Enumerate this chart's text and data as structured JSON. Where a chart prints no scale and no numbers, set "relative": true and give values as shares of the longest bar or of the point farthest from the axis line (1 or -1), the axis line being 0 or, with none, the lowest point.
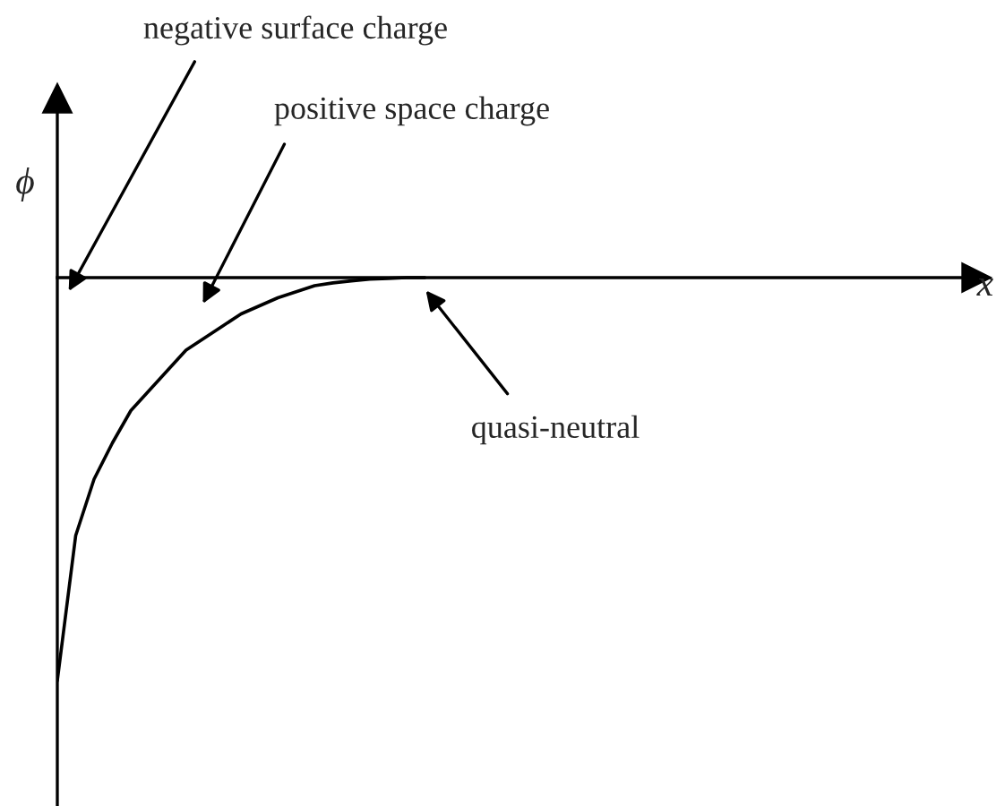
{
  "chart_data": {
    "type": "line",
    "relative": true,
    "xlabel": "x",
    "ylabel": "ϕ",
    "categories": [
      null,
      null,
      null,
      null,
      null,
      null,
      null,
      null,
      null,
      null,
      null,
      null,
      null,
      null,
      null,
      null,
      null,
      null,
      null,
      null,
      null,
      null,
      null,
      null,
      null,
      null,
      null,
      null,
      null,
      null,
      null,
      null,
      null,
      null,
      null,
      null,
      null,
      null,
      null,
      null,
      null,
      null,
      null,
      null,
      null,
      null,
      null,
      null,
      null,
      null,
      null
    ],
    "series": [
      {
        "color": "#000000",
        "values": [
          -1.0,
          -0.64,
          -0.5,
          -0.41,
          -0.33,
          -0.28,
          -0.23,
          -0.18,
          -0.15,
          -0.12,
          -0.09,
          -0.07,
          -0.05,
          -0.035,
          -0.02,
          -0.013,
          -0.008,
          -0.004,
          -0.002,
          0,
          0,
          null,
          null,
          null,
          null,
          null,
          null,
          null,
          null,
          null,
          null,
          null,
          null,
          null,
          null,
          null,
          null,
          null,
          null,
          null,
          null,
          null,
          null,
          null,
          null,
          null,
          null,
          null,
          null,
          null,
          null
        ]
      }
    ],
    "annotations": [
      "negative surface charge",
      "positive space charge",
      "quasi-neutral"
    ],
    "marker": "none",
    "line_style": "solid"
  }
}
